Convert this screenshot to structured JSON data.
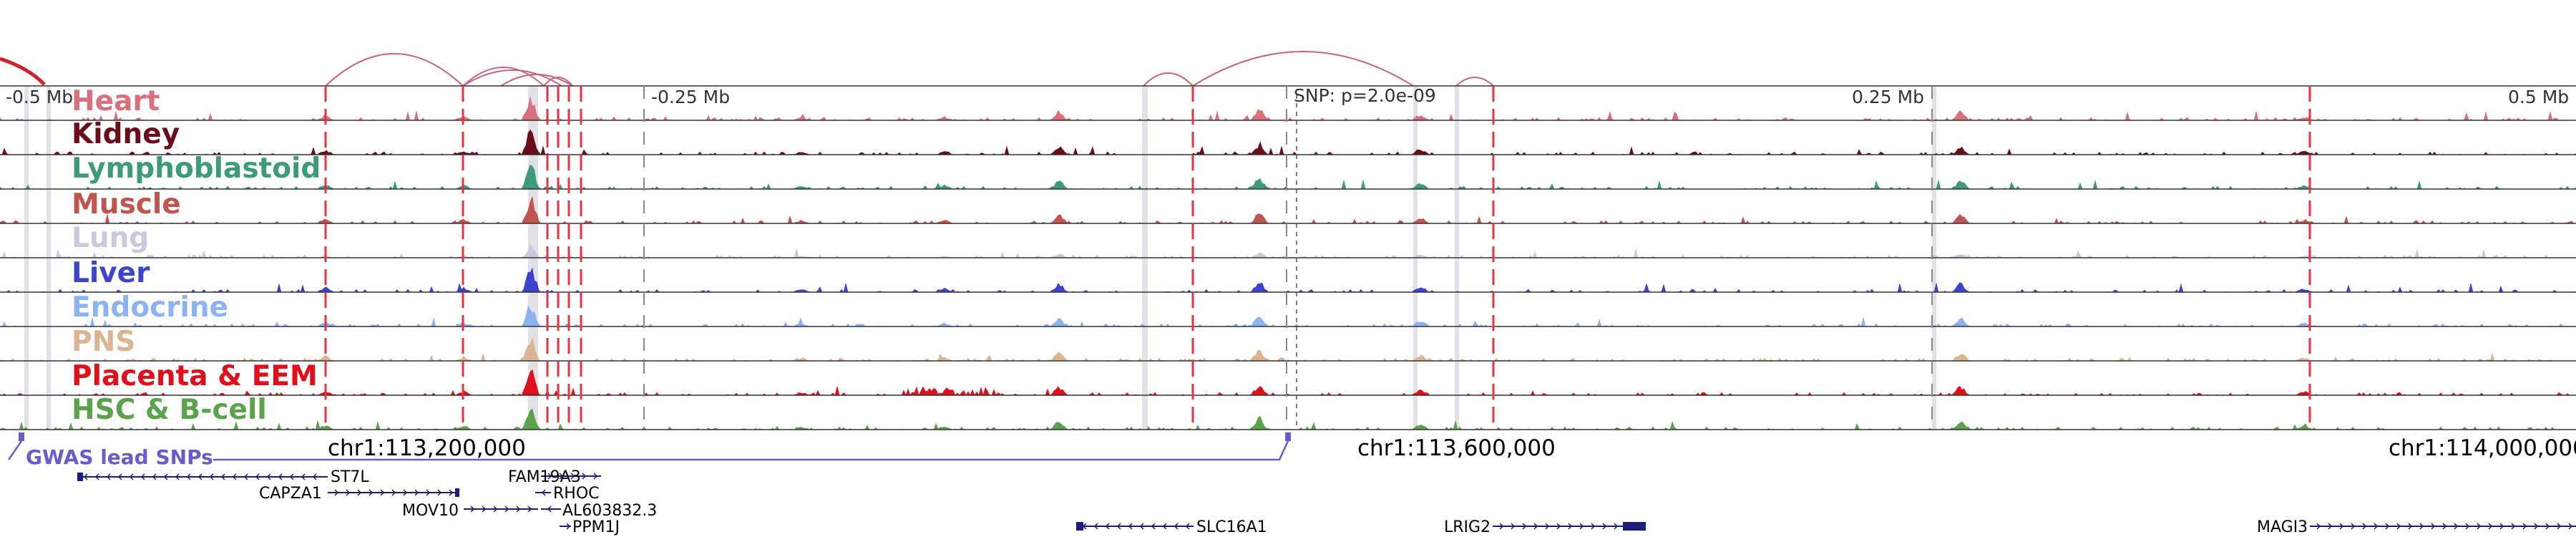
{
  "distance_labels": {
    "left_far": "-0.5 Mb",
    "left_near": "-0.25 Mb",
    "right_near": "0.25 Mb",
    "right_far": "0.5 Mb",
    "snp": "SNP: p=2.0e-09"
  },
  "tracks": [
    {
      "label": "Heart",
      "color": "#d9707e"
    },
    {
      "label": "Kidney",
      "color": "#6b0d18"
    },
    {
      "label": "Lymphoblastoid",
      "color": "#3d9a7b"
    },
    {
      "label": "Muscle",
      "color": "#c0544f"
    },
    {
      "label": "Lung",
      "color": "#c9c9dd"
    },
    {
      "label": "Liver",
      "color": "#3c44cf"
    },
    {
      "label": "Endocrine",
      "color": "#8ab3f0"
    },
    {
      "label": "PNS",
      "color": "#dbb492"
    },
    {
      "label": "Placenta & EEM",
      "color": "#e00f1a"
    },
    {
      "label": "HSC & B-cell",
      "color": "#5aa24b"
    }
  ],
  "gwas": {
    "label": "GWAS lead SNPs",
    "color": "#6a5acd"
  },
  "coordinates": {
    "c1": "chr1:113,200,000",
    "c2": "chr1:113,600,000",
    "c3": "chr1:114,000,000"
  },
  "genes": {
    "st7l": "ST7L",
    "capza1": "CAPZA1",
    "mov10": "MOV10",
    "fam19a3": "FAM19A3",
    "rhoc": "RHOC",
    "al603832": "AL603832.3",
    "ppm1j": "PPM1J",
    "slc16a1": "SLC16A1",
    "lrig2": "LRIG2",
    "magi3": "MAGI3"
  },
  "colors": {
    "arc": "#c96478",
    "eqtl_line": "#e53344",
    "gene": "#1c1c7a"
  }
}
